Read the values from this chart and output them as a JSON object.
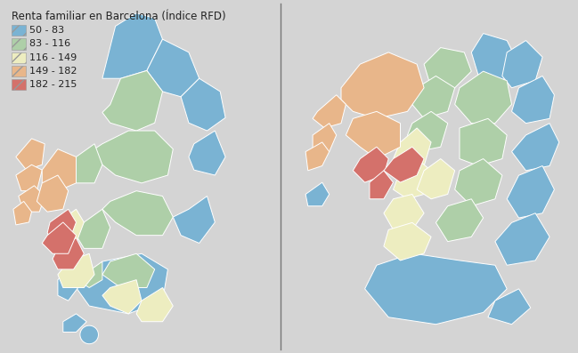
{
  "title": "Renta familiar en Barcelona (Índice RFD)",
  "background_color": "#d4d4d4",
  "colors": {
    "blue": "#7ab3d3",
    "green": "#aecfa8",
    "yellow": "#ededc0",
    "orange": "#e8b68a",
    "red": "#d4716b"
  },
  "legend_labels": [
    "50 - 83",
    "83 - 116",
    "116 - 149",
    "149 - 182",
    "182 - 215"
  ],
  "edge_color": "white",
  "edge_lw": 0.7,
  "title_fontsize": 8.5,
  "legend_fontsize": 8.0,
  "divider_color": "#777777"
}
